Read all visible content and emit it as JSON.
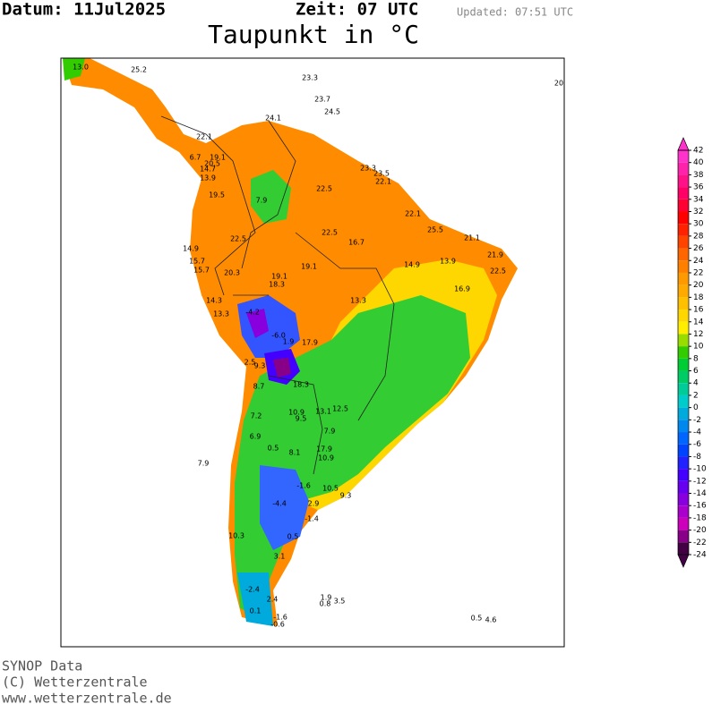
{
  "header": {
    "date": "Datum: 11Jul2025",
    "time": "Zeit: 07 UTC",
    "updated": "Updated: 07:51 UTC",
    "title": "Taupunkt in °C"
  },
  "colorbar": {
    "ticks": [
      42,
      40,
      38,
      36,
      34,
      32,
      30,
      28,
      26,
      24,
      22,
      20,
      18,
      16,
      14,
      12,
      10,
      8,
      6,
      4,
      2,
      0,
      -2,
      -4,
      -6,
      -8,
      -10,
      -12,
      -14,
      -16,
      -18,
      -20,
      -22,
      -24
    ],
    "colors": [
      "#ff33cc",
      "#ff22aa",
      "#ff1188",
      "#ff0066",
      "#ff0033",
      "#ff0000",
      "#ff2200",
      "#ff4400",
      "#ff6600",
      "#ff8000",
      "#ff9900",
      "#ffaa00",
      "#ffc000",
      "#ffd700",
      "#ffee00",
      "#99dd00",
      "#33cc00",
      "#00cc33",
      "#00cc66",
      "#00cc99",
      "#00cccc",
      "#00aadd",
      "#0088ee",
      "#0066ff",
      "#0044ff",
      "#2222ff",
      "#4400ff",
      "#6600ee",
      "#8800dd",
      "#aa00cc",
      "#cc00bb",
      "#880088",
      "#440044"
    ]
  },
  "stations": [
    "13.0",
    "25.2",
    "23.3",
    "23.7",
    "24.5",
    "24.1",
    "22.1",
    "19.1",
    "6.7",
    "20.5",
    "14.7",
    "13.9",
    "19.5",
    "7.9",
    "22.5",
    "23.3",
    "23.5",
    "22.1",
    "22.1",
    "25.5",
    "21.1",
    "14.9",
    "22.5",
    "15.7",
    "15.7",
    "20.3",
    "19.1",
    "18.3",
    "19.1",
    "22.5",
    "16.7",
    "14.9",
    "21.9",
    "22.5",
    "13.9",
    "14.3",
    "13.3",
    "-4.2",
    "-6.0",
    "1.9",
    "17.9",
    "13.3",
    "16.9",
    "9.3",
    "8.7",
    "18.3",
    "2.5",
    "7.2",
    "6.9",
    "9.5",
    "13.1",
    "12.5",
    "10.9",
    "0.5",
    "8.1",
    "17.9",
    "10.9",
    "7.9",
    "-4.4",
    "-1.6",
    "2.9",
    "-1.4",
    "0.5",
    "3.1",
    "-2.4",
    "2.4",
    "0.1",
    "-1.6",
    "-0.6",
    "1.9",
    "0.8",
    "3.5",
    "0.5",
    "4.6",
    "7.9",
    "10.3",
    "9.3",
    "10.5",
    "20"
  ],
  "footer": {
    "source": "SYNOP Data",
    "copyright": "(C) Wetterzentrale",
    "url": "www.wetterzentrale.de"
  }
}
